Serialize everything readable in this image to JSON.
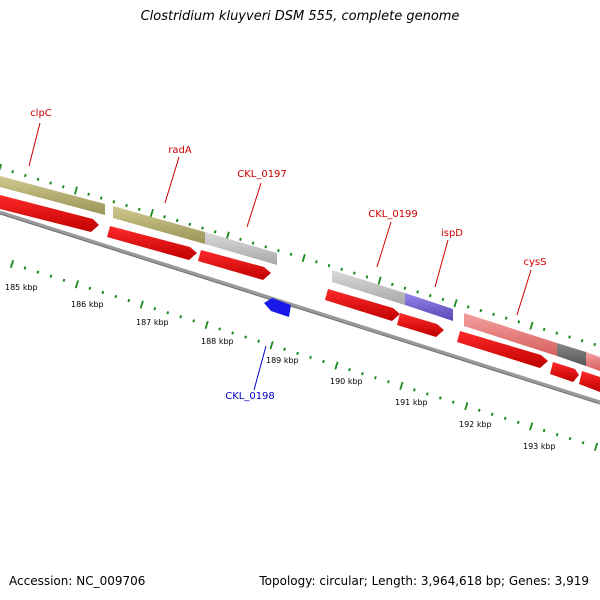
{
  "title": "Clostridium kluyveri DSM 555, complete genome",
  "footer": {
    "accession": "Accession: NC_009706",
    "topology": "Topology: circular; Length: 3,964,618 bp; Genes: 3,919"
  },
  "colors": {
    "gene_label": "#cc0000",
    "gene_label_reverse": "#0000cc",
    "tick": "#1a8a1a",
    "cds_forward": "#ee0000",
    "cds_reverse": "#0000ee",
    "backbone": "#888888",
    "olive": "#b4ae72",
    "light_gray": "#c4c4c4",
    "purple": "#7b68d8",
    "pink": "#e88080",
    "dark_gray": "#6e6e6e"
  },
  "kbp_labels": [
    "185 kbp",
    "186 kbp",
    "187 kbp",
    "188 kbp",
    "189 kbp",
    "190 kbp",
    "191 kbp",
    "192 kbp",
    "193 kbp"
  ],
  "genes": [
    {
      "name": "clpC",
      "strand": "forward"
    },
    {
      "name": "radA",
      "strand": "forward"
    },
    {
      "name": "CKL_0197",
      "strand": "forward"
    },
    {
      "name": "CKL_0198",
      "strand": "reverse"
    },
    {
      "name": "CKL_0199",
      "strand": "forward"
    },
    {
      "name": "ispD",
      "strand": "forward"
    },
    {
      "name": "cysS",
      "strand": "forward"
    }
  ]
}
